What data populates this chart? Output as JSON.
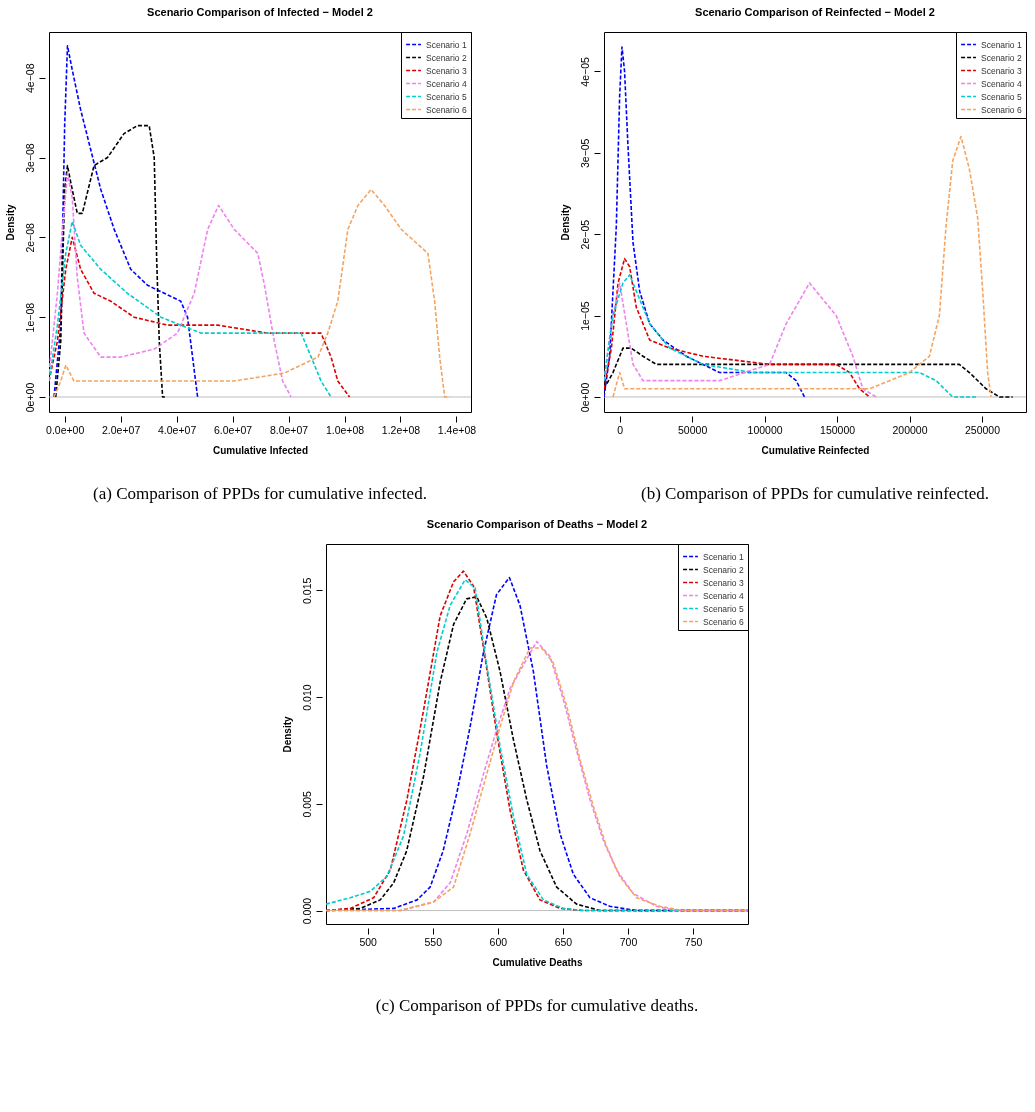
{
  "chart_data": [
    {
      "type": "line",
      "title": "Scenario Comparison of Infected − Model 2",
      "xlabel": "Cumulative Infected",
      "ylabel": "Density",
      "legend": "top right",
      "annotations": [
        "(a) Comparison of PPDs for cumulative infected."
      ],
      "xlim": [
        -5600000.0,
        145200000.0
      ],
      "ylim": [
        -1.88e-09,
        4.573e-08
      ],
      "xticks": [
        {
          "value": 0,
          "label": "0.0e+00"
        },
        {
          "value": 20000000.0,
          "label": "2.0e+07"
        },
        {
          "value": 40000000.0,
          "label": "4.0e+07"
        },
        {
          "value": 60000000.0,
          "label": "6.0e+07"
        },
        {
          "value": 80000000.0,
          "label": "8.0e+07"
        },
        {
          "value": 100000000.0,
          "label": "1.0e+08"
        },
        {
          "value": 120000000.0,
          "label": "1.2e+08"
        },
        {
          "value": 140000000.0,
          "label": "1.4e+08"
        }
      ],
      "yticks": [
        {
          "value": 0,
          "label": "0e+00"
        },
        {
          "value": 1e-08,
          "label": "1e−08"
        },
        {
          "value": 2e-08,
          "label": "2e−08"
        },
        {
          "value": 3e-08,
          "label": "3e−08"
        },
        {
          "value": 4e-08,
          "label": "4e−08"
        }
      ],
      "ref_lines": [
        {
          "axis": "y",
          "value": 0,
          "color": "#bebebe"
        }
      ],
      "series": [
        {
          "name": "Scenario 1",
          "color": "#0000ff",
          "line_style": "dashed",
          "x": [
            -3800000.0,
            -1400000.0,
            0,
            1000000.0,
            2700000.0,
            5700000.0,
            9300000.0,
            12900000.0,
            17700000.0,
            23600000.0,
            29600000.0,
            35600000.0,
            41500000.0,
            43900000.0,
            45700000.0,
            47500000.0
          ],
          "values": [
            0,
            9e-09,
            3.4e-08,
            4.4e-08,
            4.1e-08,
            3.6e-08,
            3.1e-08,
            2.6e-08,
            2.1e-08,
            1.6e-08,
            1.4e-08,
            1.3e-08,
            1.2e-08,
            1e-08,
            5e-09,
            0
          ]
        },
        {
          "name": "Scenario 2",
          "color": "#000000",
          "line_style": "dashed",
          "x": [
            -3200000.0,
            -1400000.0,
            0,
            1000000.0,
            2100000.0,
            4500000.0,
            6300000.0,
            10500000.0,
            15300000.0,
            21200000.0,
            26000000.0,
            30200000.0,
            32000000.0,
            32900000.0,
            33800000.0,
            35000000.0,
            35800000.0
          ],
          "values": [
            0,
            7e-09,
            2.6e-08,
            2.9e-08,
            2.7e-08,
            2.3e-08,
            2.3e-08,
            2.9e-08,
            3e-08,
            3.3e-08,
            3.4e-08,
            3.4e-08,
            3e-08,
            1.7e-08,
            7e-09,
            0,
            0
          ]
        },
        {
          "name": "Scenario 3",
          "color": "#dd0000",
          "line_style": "dashed",
          "x": [
            -5600000.0,
            -2600000.0,
            400000.0,
            2700000.0,
            5700000.0,
            10500000.0,
            16500000.0,
            24800000.0,
            36800000.0,
            54700000.0,
            72600000.0,
            88100000.0,
            91600000.0,
            95200000.0,
            97600000.0,
            101800000.0
          ],
          "values": [
            2e-09,
            7e-09,
            1.6e-08,
            2e-08,
            1.6e-08,
            1.3e-08,
            1.2e-08,
            1e-08,
            9e-09,
            9e-09,
            8e-09,
            8e-09,
            8e-09,
            5e-09,
            2e-09,
            0
          ]
        },
        {
          "name": "Scenario 4",
          "color": "#ee82ee",
          "line_style": "dashed",
          "x": [
            -5600000.0,
            -2600000.0,
            -800000.0,
            1000000.0,
            2700000.0,
            4500000.0,
            6900000.0,
            12900000.0,
            20000000.0,
            32000000.0,
            40300000.0,
            46300000.0,
            51100000.0,
            55000000.0,
            60600000.0,
            69000000.0,
            71400000.0,
            74900000.0,
            77900000.0,
            80900000.0
          ],
          "values": [
            3e-09,
            1.3e-08,
            2.1e-08,
            2.8e-08,
            2.5e-08,
            1.5e-08,
            8e-09,
            5e-09,
            5e-09,
            6e-09,
            8e-09,
            1.3e-08,
            2.1e-08,
            2.4e-08,
            2.1e-08,
            1.8e-08,
            1.4e-08,
            7e-09,
            2e-09,
            0
          ]
        },
        {
          "name": "Scenario 5",
          "color": "#00cdcd",
          "line_style": "dashed",
          "x": [
            -5600000.0,
            -2600000.0,
            400000.0,
            2700000.0,
            5700000.0,
            12900000.0,
            22400000.0,
            34400000.0,
            48700000.0,
            66600000.0,
            84500000.0,
            88100000.0,
            91600000.0,
            95200000.0
          ],
          "values": [
            2e-09,
            9e-09,
            1.8e-08,
            2.2e-08,
            1.9e-08,
            1.6e-08,
            1.3e-08,
            1e-08,
            8e-09,
            8e-09,
            8e-09,
            5e-09,
            2e-09,
            0
          ]
        },
        {
          "name": "Scenario 6",
          "color": "#f4a460",
          "line_style": "dashed",
          "x": [
            -3800000.0,
            -1400000.0,
            400000.0,
            3300000.0,
            6300000.0,
            18900000.0,
            42700000.0,
            60600000.0,
            78500000.0,
            90500000.0,
            94000000.0,
            97600000.0,
            101200000.0,
            104800000.0,
            109500000.0,
            114300000.0,
            120300000.0,
            129800000.0,
            132200000.0,
            134000000.0,
            135800000.0,
            137600000.0
          ],
          "values": [
            0,
            2e-09,
            4e-09,
            2e-09,
            2e-09,
            2e-09,
            2e-09,
            2e-09,
            3e-09,
            5e-09,
            8e-09,
            1.2e-08,
            2.1e-08,
            2.4e-08,
            2.6e-08,
            2.4e-08,
            2.1e-08,
            1.8e-08,
            1.2e-08,
            5e-09,
            0,
            0
          ]
        }
      ]
    },
    {
      "type": "line",
      "title": "Scenario Comparison of Reinfected − Model 2",
      "xlabel": "Cumulative Reinfected",
      "ylabel": "Density",
      "legend": "top right",
      "annotations": [
        "(b) Comparison of PPDs for cumulative reinfected."
      ],
      "xlim": [
        -10800,
        280360
      ],
      "ylim": [
        -1.85e-06,
        4.484e-05
      ],
      "xticks": [
        0,
        50000,
        100000,
        150000,
        200000,
        250000
      ],
      "yticks": [
        {
          "value": 0,
          "label": "0e+00"
        },
        {
          "value": 1e-05,
          "label": "1e−05"
        },
        {
          "value": 2e-05,
          "label": "2e−05"
        },
        {
          "value": 3e-05,
          "label": "3e−05"
        },
        {
          "value": 4e-05,
          "label": "4e−05"
        }
      ],
      "ref_lines": [
        {
          "axis": "y",
          "value": 0,
          "color": "#bebebe"
        }
      ],
      "series": [
        {
          "name": "Scenario 1",
          "color": "#0000ff",
          "line_style": "dashed",
          "x": [
            -10800,
            -6900,
            -2300,
            0,
            1600,
            3400,
            5700,
            9200,
            13800,
            20700,
            29900,
            46000,
            68900,
            91900,
            114900,
            121800,
            127500
          ],
          "values": [
            0,
            5e-06,
            2.1e-05,
            3.7e-05,
            4.3e-05,
            4e-05,
            3.1e-05,
            1.9e-05,
            1.3e-05,
            9e-06,
            7e-06,
            5e-06,
            3e-06,
            3e-06,
            3e-06,
            2e-06,
            0
          ]
        },
        {
          "name": "Scenario 2",
          "color": "#000000",
          "line_style": "dashed",
          "x": [
            -10800,
            -4600,
            2300,
            8000,
            16100,
            25300,
            46000,
            80400,
            126400,
            149400,
            195300,
            234400,
            241300,
            252800,
            262000,
            271200
          ],
          "values": [
            1e-06,
            3e-06,
            6e-06,
            6e-06,
            5e-06,
            4e-06,
            4e-06,
            4e-06,
            4e-06,
            4e-06,
            4e-06,
            4e-06,
            3e-06,
            1e-06,
            0,
            0
          ]
        },
        {
          "name": "Scenario 3",
          "color": "#dd0000",
          "line_style": "dashed",
          "x": [
            -10800,
            -5700,
            -1100,
            3400,
            6900,
            11500,
            20700,
            34500,
            57500,
            103400,
            149400,
            158600,
            165500,
            172400
          ],
          "values": [
            1e-06,
            6e-06,
            1.4e-05,
            1.7e-05,
            1.6e-05,
            1.1e-05,
            7e-06,
            6e-06,
            5e-06,
            4e-06,
            4e-06,
            3e-06,
            1e-06,
            0
          ]
        },
        {
          "name": "Scenario 4",
          "color": "#ee82ee",
          "line_style": "dashed",
          "x": [
            -10800,
            -5700,
            0,
            4600,
            9200,
            16100,
            34500,
            68900,
            103400,
            114900,
            130970,
            149400,
            160900,
            167800,
            177000
          ],
          "values": [
            2e-06,
            9e-06,
            1.4e-05,
            9e-06,
            4e-06,
            2e-06,
            2e-06,
            2e-06,
            4e-06,
            9e-06,
            1.4e-05,
            1e-05,
            5e-06,
            1e-06,
            0
          ]
        },
        {
          "name": "Scenario 5",
          "color": "#00cdcd",
          "line_style": "dashed",
          "x": [
            -10800,
            -4600,
            2300,
            6900,
            11500,
            20700,
            34500,
            57500,
            91900,
            149400,
            206800,
            218300,
            229800,
            245900
          ],
          "values": [
            2e-06,
            1e-05,
            1.4e-05,
            1.5e-05,
            1.3e-05,
            9e-06,
            6e-06,
            4e-06,
            3e-06,
            3e-06,
            3e-06,
            2e-06,
            0,
            0
          ]
        },
        {
          "name": "Scenario 6",
          "color": "#f4a460",
          "line_style": "dashed",
          "x": [
            -4600,
            0,
            3400,
            8000,
            57500,
            126400,
            172400,
            199900,
            213700,
            220600,
            225200,
            229800,
            235500,
            241300,
            247000,
            250500,
            253900,
            256200
          ],
          "values": [
            0,
            3e-06,
            1e-06,
            1e-06,
            1e-06,
            1e-06,
            1e-06,
            3e-06,
            5e-06,
            1e-05,
            2.1e-05,
            2.9e-05,
            3.2e-05,
            2.8e-05,
            2.2e-05,
            1.3e-05,
            3e-06,
            0
          ]
        }
      ]
    },
    {
      "type": "line",
      "title": "Scenario Comparison of Deaths − Model 2",
      "xlabel": "Cumulative Deaths",
      "ylabel": "Density",
      "legend": "top right",
      "annotations": [
        "(c) Comparison of PPDs for cumulative deaths."
      ],
      "xlim": [
        468,
        792.2
      ],
      "ylim": [
        -0.00063,
        0.01717
      ],
      "xticks": [
        500,
        550,
        600,
        650,
        700,
        750
      ],
      "yticks": [
        {
          "value": 0,
          "label": "0.000"
        },
        {
          "value": 0.005,
          "label": "0.005"
        },
        {
          "value": 0.01,
          "label": "0.010"
        },
        {
          "value": 0.015,
          "label": "0.015"
        }
      ],
      "ref_lines": [
        {
          "axis": "y",
          "value": 0,
          "color": "#bebebe"
        }
      ],
      "series": [
        {
          "name": "Scenario 1",
          "color": "#0000ff",
          "line_style": "dashed",
          "x": [
            468,
            520,
            538,
            548,
            558,
            568.5,
            578.7,
            589,
            599,
            608.9,
            617,
            627.3,
            637.5,
            647.8,
            658,
            670.8,
            686,
            706.5,
            792.2
          ],
          "values": [
            0,
            0.0001,
            0.0005,
            0.0011,
            0.0028,
            0.0055,
            0.0086,
            0.0121,
            0.0148,
            0.0156,
            0.0143,
            0.0112,
            0.0068,
            0.0036,
            0.0017,
            0.0006,
            0.0002,
            0,
            0
          ]
        },
        {
          "name": "Scenario 2",
          "color": "#000000",
          "line_style": "dashed",
          "x": [
            468,
            494.4,
            509.7,
            520,
            530,
            543,
            555.7,
            566,
            576,
            583.8,
            591.5,
            601.7,
            612,
            622.2,
            632.4,
            645.2,
            660.5,
            678.4,
            792.2
          ],
          "values": [
            0,
            0.0001,
            0.0005,
            0.0013,
            0.0028,
            0.0063,
            0.0107,
            0.0134,
            0.0146,
            0.0147,
            0.0137,
            0.0112,
            0.008,
            0.0052,
            0.0028,
            0.0011,
            0.0003,
            0,
            0
          ]
        },
        {
          "name": "Scenario 3",
          "color": "#dd0000",
          "line_style": "dashed",
          "x": [
            468,
            486.7,
            504.6,
            517.4,
            530.2,
            543,
            555.7,
            566,
            573.6,
            581.3,
            589,
            599.2,
            609.4,
            619.6,
            632.4,
            647.8,
            665.6,
            792.2
          ],
          "values": [
            0,
            0.0001,
            0.0006,
            0.0019,
            0.0052,
            0.0094,
            0.0138,
            0.0154,
            0.0159,
            0.0152,
            0.0123,
            0.0083,
            0.0047,
            0.0019,
            0.0005,
            0.0001,
            0,
            0
          ]
        },
        {
          "name": "Scenario 4",
          "color": "#ee82ee",
          "line_style": "dashed",
          "x": [
            468,
            525,
            550.6,
            563.4,
            576.2,
            589,
            599.2,
            609.4,
            619.6,
            629.9,
            640.1,
            650.3,
            660.5,
            670.8,
            681,
            691.2,
            704,
            721.9,
            737.2,
            792.2
          ],
          "values": [
            0,
            0,
            0.0004,
            0.0013,
            0.0036,
            0.0064,
            0.0085,
            0.0104,
            0.0115,
            0.0126,
            0.0119,
            0.0099,
            0.0075,
            0.0052,
            0.0033,
            0.0019,
            0.0008,
            0.0002,
            0,
            0
          ]
        },
        {
          "name": "Scenario 5",
          "color": "#00cdcd",
          "line_style": "dashed",
          "x": [
            468,
            486.7,
            502,
            514.8,
            527.6,
            540.4,
            553.2,
            563.4,
            574.9,
            582.6,
            591.5,
            601.7,
            612,
            622.2,
            635,
            650.3,
            665.6,
            792.2
          ],
          "values": [
            0.0003,
            0.0006,
            0.0009,
            0.0016,
            0.0035,
            0.0074,
            0.0121,
            0.0143,
            0.0155,
            0.0151,
            0.0115,
            0.0077,
            0.0044,
            0.0017,
            0.0005,
            0.0001,
            0,
            0
          ]
        },
        {
          "name": "Scenario 6",
          "color": "#f4a460",
          "line_style": "dashed",
          "x": [
            468,
            525,
            550.6,
            566,
            578.7,
            591.5,
            601.7,
            612,
            624.7,
            633.7,
            642.6,
            652.8,
            663,
            673.3,
            683.5,
            693.7,
            706.5,
            724.4,
            742.2,
            792.2
          ],
          "values": [
            0,
            0,
            0.0004,
            0.0011,
            0.0036,
            0.0064,
            0.0086,
            0.0107,
            0.0123,
            0.0123,
            0.0116,
            0.0096,
            0.0071,
            0.0049,
            0.003,
            0.0016,
            0.0006,
            0.0002,
            0,
            0
          ]
        }
      ]
    }
  ]
}
